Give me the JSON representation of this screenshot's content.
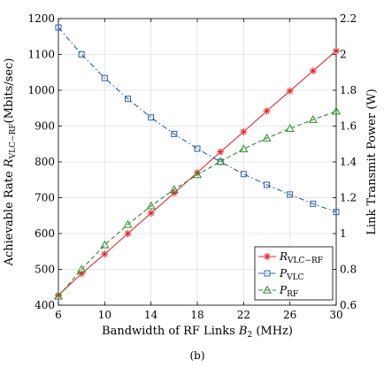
{
  "chart_data": {
    "type": "line",
    "x": [
      6,
      8,
      10,
      12,
      14,
      16,
      18,
      20,
      22,
      24,
      26,
      28,
      30
    ],
    "xlim": [
      6,
      30
    ],
    "xticks": [
      6,
      10,
      14,
      18,
      22,
      26,
      30
    ],
    "xlabel_main": "Bandwidth of RF Links ",
    "xlabel_var": "B",
    "xlabel_sub": "2",
    "xlabel_unit": " (MHz)",
    "ylim_left": [
      400,
      1200
    ],
    "yticks_left": [
      400,
      500,
      600,
      700,
      800,
      900,
      1000,
      1100,
      1200
    ],
    "ylabel_left_main": "Achievable Rate ",
    "ylabel_left_var": "R",
    "ylabel_left_sub": "VLC−RF",
    "ylabel_left_unit": "(Mbits/sec)",
    "ylim_right": [
      0.6,
      2.2
    ],
    "yticks_right": [
      "0.6",
      "0.8",
      "1",
      "1.2",
      "1.4",
      "1.6",
      "1.8",
      "2",
      "2.2"
    ],
    "ylabel_right": "Link Transmit Power (W)",
    "grid": true,
    "legend_position": "bottom-right",
    "caption": "(b)",
    "series": [
      {
        "name_var": "R",
        "name_sub": "VLC−RF",
        "axis": "left",
        "color": "#e8262a",
        "marker": "asterisk",
        "line": "solid",
        "values": [
          428,
          488,
          543,
          600,
          657,
          713,
          770,
          828,
          884,
          942,
          998,
          1054,
          1110
        ]
      },
      {
        "name_var": "P",
        "name_sub": "VLC",
        "axis": "right",
        "color": "#2a5db0",
        "marker": "square",
        "line": "dashdot",
        "values": [
          2.15,
          2.0,
          1.868,
          1.752,
          1.648,
          1.556,
          1.474,
          1.4,
          1.332,
          1.272,
          1.218,
          1.166,
          1.12
        ]
      },
      {
        "name_var": "P",
        "name_sub": "RF",
        "axis": "right",
        "color": "#2e8b2e",
        "marker": "triangle",
        "line": "dashed",
        "values": [
          0.65,
          0.8,
          0.936,
          1.05,
          1.154,
          1.246,
          1.328,
          1.402,
          1.472,
          1.532,
          1.586,
          1.636,
          1.682
        ]
      }
    ]
  }
}
